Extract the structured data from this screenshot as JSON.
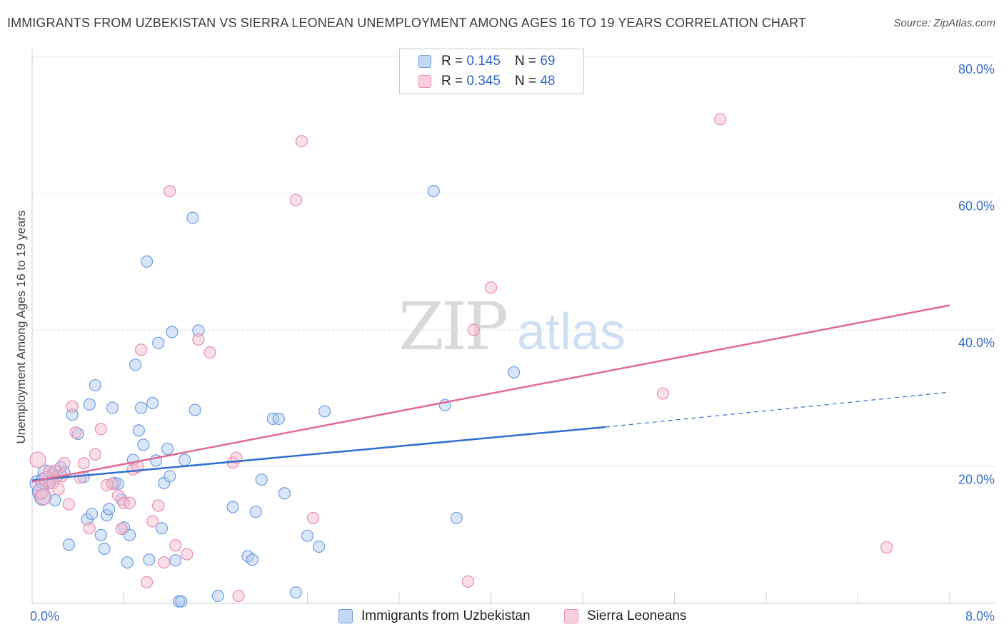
{
  "title": "IMMIGRANTS FROM UZBEKISTAN VS SIERRA LEONEAN UNEMPLOYMENT AMONG AGES 16 TO 19 YEARS CORRELATION CHART",
  "source_prefix": "Source: ",
  "source_name": "ZipAtlas.com",
  "watermark": {
    "zip": "ZIP",
    "atlas": "atlas"
  },
  "legend": {
    "r_label": "R =",
    "n_label": "N =",
    "series": [
      {
        "r": "0.145",
        "n": "69"
      },
      {
        "r": "0.345",
        "n": "48"
      }
    ]
  },
  "colors": {
    "blue_fill": "#aac8f0",
    "blue_stroke": "#6f9ee0",
    "blue_line": "#2f6fd0",
    "pink_fill": "#f7b8cc",
    "pink_stroke": "#e88fae",
    "pink_line": "#e06a95",
    "tick_text": "#3a6fcc"
  },
  "chart_data": {
    "type": "scatter",
    "title": "IMMIGRANTS FROM UZBEKISTAN VS SIERRA LEONEAN UNEMPLOYMENT AMONG AGES 16 TO 19 YEARS CORRELATION CHART",
    "xlabel": "",
    "ylabel": "Unemployment Among Ages 16 to 19 years",
    "xlim": [
      0,
      8.0
    ],
    "ylim": [
      0,
      80
    ],
    "x_tick_labels": [
      "0.0%",
      "8.0%"
    ],
    "y_ticks": [
      20,
      40,
      60,
      80
    ],
    "y_tick_labels": [
      "20.0%",
      "40.0%",
      "60.0%",
      "80.0%"
    ],
    "grid": true,
    "legend_position": "top-center",
    "series": [
      {
        "name": "Immigrants from Uzbekistan",
        "r": 0.145,
        "n": 69,
        "trend": {
          "x0": 0.0,
          "y0": 18.0,
          "x1": 5.0,
          "y1": 25.8,
          "dashed_to_x": 8.0,
          "dashed_to_y": 30.9
        },
        "points": [
          [
            0.05,
            17.6
          ],
          [
            0.07,
            16.3
          ],
          [
            0.09,
            15.5
          ],
          [
            0.1,
            17.9
          ],
          [
            0.12,
            19.1
          ],
          [
            0.15,
            17.6
          ],
          [
            0.18,
            19.0
          ],
          [
            0.2,
            15.1
          ],
          [
            0.22,
            18.6
          ],
          [
            0.25,
            19.9
          ],
          [
            0.28,
            19.2
          ],
          [
            0.32,
            8.6
          ],
          [
            0.35,
            27.6
          ],
          [
            0.4,
            24.8
          ],
          [
            0.45,
            18.5
          ],
          [
            0.48,
            12.3
          ],
          [
            0.5,
            29.1
          ],
          [
            0.52,
            13.1
          ],
          [
            0.55,
            31.9
          ],
          [
            0.6,
            10.0
          ],
          [
            0.63,
            8.0
          ],
          [
            0.65,
            12.9
          ],
          [
            0.67,
            13.8
          ],
          [
            0.7,
            28.6
          ],
          [
            0.72,
            17.6
          ],
          [
            0.75,
            17.5
          ],
          [
            0.78,
            15.2
          ],
          [
            0.8,
            11.1
          ],
          [
            0.83,
            6.0
          ],
          [
            0.85,
            10.0
          ],
          [
            0.88,
            21.0
          ],
          [
            0.9,
            34.9
          ],
          [
            0.93,
            25.3
          ],
          [
            0.95,
            28.6
          ],
          [
            0.97,
            23.2
          ],
          [
            1.0,
            50.0
          ],
          [
            1.02,
            6.4
          ],
          [
            1.05,
            29.3
          ],
          [
            1.08,
            20.9
          ],
          [
            1.1,
            38.1
          ],
          [
            1.13,
            11.0
          ],
          [
            1.15,
            17.6
          ],
          [
            1.18,
            22.6
          ],
          [
            1.2,
            18.6
          ],
          [
            1.22,
            39.7
          ],
          [
            1.25,
            6.3
          ],
          [
            1.28,
            0.3
          ],
          [
            1.3,
            0.3
          ],
          [
            1.33,
            21.0
          ],
          [
            1.4,
            56.4
          ],
          [
            1.42,
            28.3
          ],
          [
            1.45,
            39.9
          ],
          [
            1.62,
            1.1
          ],
          [
            1.75,
            14.1
          ],
          [
            1.88,
            6.9
          ],
          [
            1.92,
            6.4
          ],
          [
            1.95,
            13.4
          ],
          [
            2.0,
            18.1
          ],
          [
            2.1,
            27.0
          ],
          [
            2.15,
            27.0
          ],
          [
            2.2,
            16.1
          ],
          [
            2.3,
            1.6
          ],
          [
            2.4,
            9.9
          ],
          [
            2.5,
            8.3
          ],
          [
            2.55,
            28.1
          ],
          [
            3.5,
            60.3
          ],
          [
            3.6,
            29.0
          ],
          [
            3.7,
            12.5
          ],
          [
            4.2,
            33.8
          ]
        ]
      },
      {
        "name": "Sierra Leoneans",
        "r": 0.345,
        "n": 48,
        "trend": {
          "x0": 0.0,
          "y0": 17.8,
          "x1": 8.0,
          "y1": 43.6
        },
        "points": [
          [
            0.05,
            21.0
          ],
          [
            0.08,
            16.5
          ],
          [
            0.1,
            15.6
          ],
          [
            0.13,
            18.2
          ],
          [
            0.15,
            19.3
          ],
          [
            0.18,
            17.6
          ],
          [
            0.2,
            19.4
          ],
          [
            0.23,
            16.7
          ],
          [
            0.26,
            18.6
          ],
          [
            0.28,
            20.5
          ],
          [
            0.32,
            14.5
          ],
          [
            0.35,
            28.8
          ],
          [
            0.38,
            25.0
          ],
          [
            0.42,
            18.4
          ],
          [
            0.45,
            20.5
          ],
          [
            0.5,
            11.0
          ],
          [
            0.55,
            21.8
          ],
          [
            0.6,
            25.5
          ],
          [
            0.65,
            17.3
          ],
          [
            0.7,
            17.5
          ],
          [
            0.75,
            15.8
          ],
          [
            0.78,
            10.9
          ],
          [
            0.8,
            14.7
          ],
          [
            0.85,
            14.7
          ],
          [
            0.88,
            19.6
          ],
          [
            0.92,
            20.0
          ],
          [
            0.95,
            37.1
          ],
          [
            1.0,
            3.1
          ],
          [
            1.05,
            12.0
          ],
          [
            1.1,
            14.3
          ],
          [
            1.15,
            6.0
          ],
          [
            1.2,
            60.3
          ],
          [
            1.25,
            8.5
          ],
          [
            1.35,
            7.2
          ],
          [
            1.45,
            38.6
          ],
          [
            1.55,
            36.7
          ],
          [
            1.75,
            20.6
          ],
          [
            1.78,
            21.3
          ],
          [
            1.8,
            1.1
          ],
          [
            2.3,
            59.0
          ],
          [
            2.35,
            67.6
          ],
          [
            2.45,
            12.5
          ],
          [
            3.8,
            3.2
          ],
          [
            3.85,
            40.0
          ],
          [
            4.0,
            46.2
          ],
          [
            5.5,
            30.7
          ],
          [
            6.0,
            70.8
          ],
          [
            7.45,
            8.2
          ]
        ]
      }
    ]
  }
}
